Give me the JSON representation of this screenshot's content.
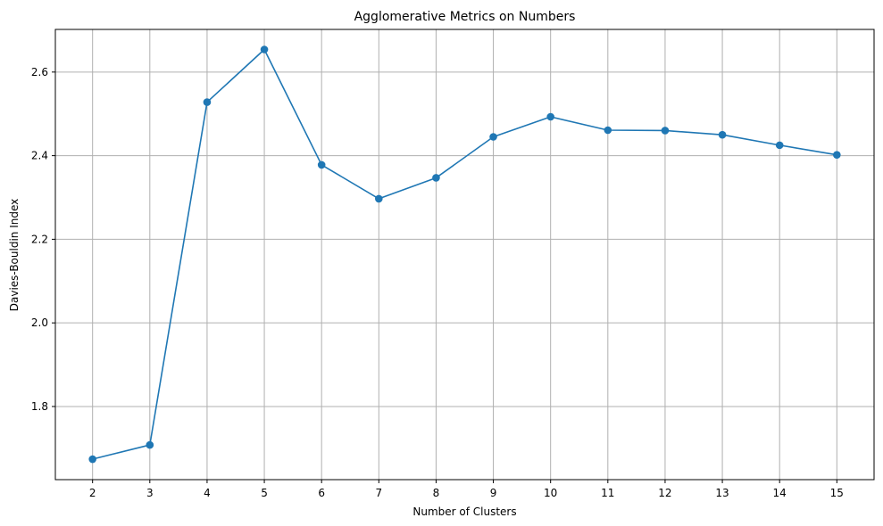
{
  "chart_data": {
    "type": "line",
    "title": "Agglomerative Metrics on Numbers",
    "xlabel": "Number of Clusters",
    "ylabel": "Davies-Bouldin Index",
    "x": [
      2,
      3,
      4,
      5,
      6,
      7,
      8,
      9,
      10,
      11,
      12,
      13,
      14,
      15
    ],
    "xticks": [
      "2",
      "3",
      "4",
      "5",
      "6",
      "7",
      "8",
      "9",
      "10",
      "11",
      "12",
      "13",
      "14",
      "15"
    ],
    "yticks": [
      "1.8",
      "2.0",
      "2.2",
      "2.4",
      "2.6"
    ],
    "ytick_values": [
      1.8,
      2.0,
      2.2,
      2.4,
      2.6
    ],
    "xlim": [
      1.35,
      15.65
    ],
    "ylim": [
      1.625,
      2.702
    ],
    "grid": true,
    "series": [
      {
        "name": "Davies-Bouldin Index",
        "color": "#1f77b4",
        "marker": "circle",
        "values": [
          1.674,
          1.708,
          2.528,
          2.654,
          2.378,
          2.297,
          2.347,
          2.445,
          2.493,
          2.461,
          2.46,
          2.45,
          2.425,
          2.402
        ]
      }
    ]
  }
}
